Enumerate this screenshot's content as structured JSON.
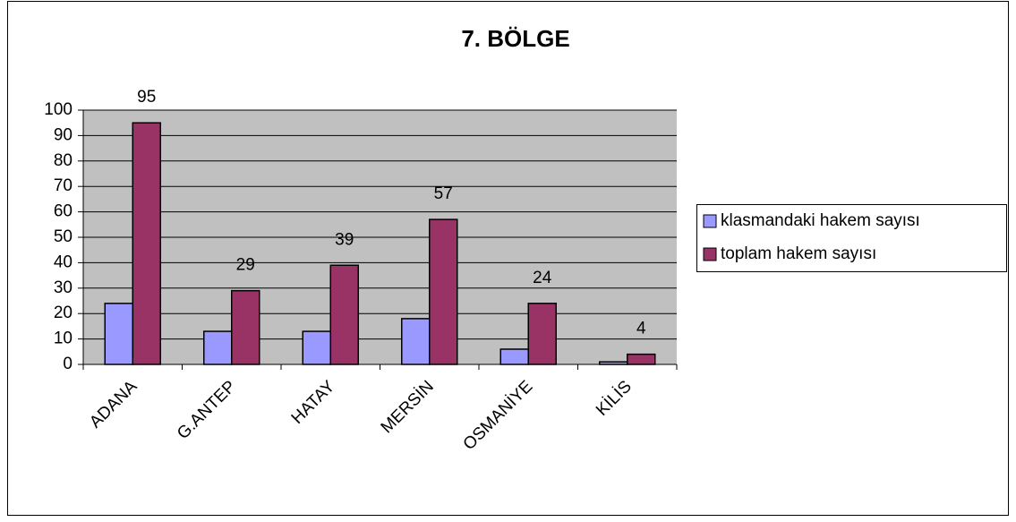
{
  "chart_data": {
    "type": "bar",
    "title": "7. BÖLGE",
    "categories": [
      "ADANA",
      "G.ANTEP",
      "HATAY",
      "MERSİN",
      "OSMANİYE",
      "KİLİS"
    ],
    "series": [
      {
        "name": "klasmandaki hakem sayısı",
        "color": "#9999ff",
        "values": [
          24,
          13,
          13,
          18,
          6,
          1
        ],
        "data_labels": false
      },
      {
        "name": "toplam hakem sayısı",
        "color": "#993366",
        "values": [
          95,
          29,
          39,
          57,
          24,
          4
        ],
        "data_labels": true
      }
    ],
    "ylim": [
      0,
      100
    ],
    "yticks": [
      0,
      10,
      20,
      30,
      40,
      50,
      60,
      70,
      80,
      90,
      100
    ],
    "grid": true,
    "legend": "right"
  }
}
